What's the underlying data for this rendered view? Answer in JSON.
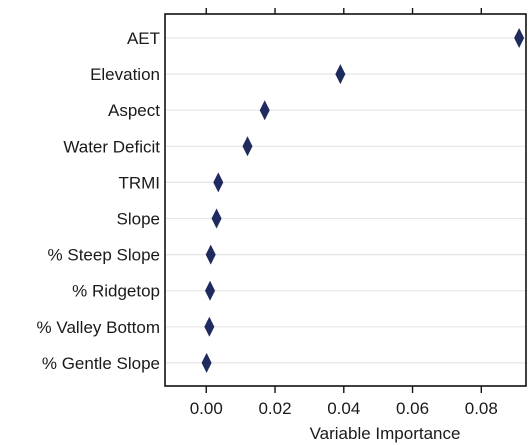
{
  "chart_data": {
    "type": "scatter",
    "title": "",
    "xlabel": "Variable Importance",
    "ylabel": "",
    "xlim": [
      -0.012,
      0.093
    ],
    "xticks": [
      "0.00",
      "0.02",
      "0.04",
      "0.06",
      "0.08"
    ],
    "xtick_values": [
      0,
      0.02,
      0.04,
      0.06,
      0.08
    ],
    "grid": "horizontal",
    "marker": "diamond",
    "marker_color": "#1f2a5e",
    "categories": [
      "AET",
      "Elevation",
      "Aspect",
      "Water Deficit",
      "TRMI",
      "Slope",
      "% Steep Slope",
      "% Ridgetop",
      "% Valley Bottom",
      "% Gentle Slope"
    ],
    "values": [
      0.091,
      0.039,
      0.017,
      0.012,
      0.0035,
      0.003,
      0.0013,
      0.0011,
      0.0009,
      0.0001
    ]
  }
}
